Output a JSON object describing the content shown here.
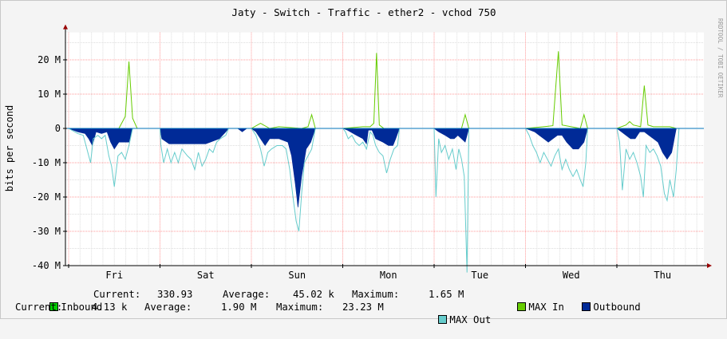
{
  "chart_data": {
    "type": "area",
    "title": "Jaty - Switch - Traffic - ether2 - vchod 750",
    "ylabel": "bits per second",
    "watermark": "RRDTOOL / TOBI OETIKER",
    "yticks": [
      {
        "value": 20000000,
        "label": "20 M"
      },
      {
        "value": 10000000,
        "label": "10 M"
      },
      {
        "value": 0,
        "label": "0"
      },
      {
        "value": -10000000,
        "label": "-10 M"
      },
      {
        "value": -20000000,
        "label": "-20 M"
      },
      {
        "value": -30000000,
        "label": "-30 M"
      },
      {
        "value": -40000000,
        "label": "-40 M"
      }
    ],
    "ylim": [
      -40000000,
      28000000
    ],
    "days": [
      "Fri",
      "Sat",
      "Sun",
      "Mon",
      "Tue",
      "Wed",
      "Thu"
    ],
    "grid": true,
    "colors": {
      "inbound": "#00cc00",
      "max_in": "#66cc00",
      "outbound": "#002a97",
      "max_out": "#66cccc",
      "grid_major": "#ff9999",
      "grid_minor": "#dddddd",
      "axis": "#000000",
      "arrow": "#990000",
      "zero_line": "#0073b9"
    },
    "series": [
      {
        "name": "MAX In",
        "color": "#66cc00",
        "points": [
          [
            0.0,
            0
          ],
          [
            0.55,
            0
          ],
          [
            0.62,
            3.5
          ],
          [
            0.66,
            19.5
          ],
          [
            0.7,
            3
          ],
          [
            0.75,
            0
          ],
          [
            2.0,
            0
          ],
          [
            2.1,
            1.5
          ],
          [
            2.2,
            0
          ],
          [
            2.3,
            0.5
          ],
          [
            2.55,
            0
          ],
          [
            2.62,
            0.5
          ],
          [
            2.66,
            4
          ],
          [
            2.7,
            0
          ],
          [
            3.0,
            0
          ],
          [
            3.22,
            0.5
          ],
          [
            3.3,
            0.5
          ],
          [
            3.34,
            1.5
          ],
          [
            3.37,
            22
          ],
          [
            3.4,
            1
          ],
          [
            3.45,
            0
          ],
          [
            4.0,
            0
          ],
          [
            4.3,
            0
          ],
          [
            4.34,
            4
          ],
          [
            4.38,
            0
          ],
          [
            5.0,
            0
          ],
          [
            5.2,
            0.5
          ],
          [
            5.3,
            0.8
          ],
          [
            5.36,
            22.5
          ],
          [
            5.4,
            1
          ],
          [
            5.6,
            0
          ],
          [
            5.64,
            4
          ],
          [
            5.68,
            0
          ],
          [
            6.0,
            0
          ],
          [
            6.1,
            1
          ],
          [
            6.14,
            2
          ],
          [
            6.18,
            1
          ],
          [
            6.26,
            0.5
          ],
          [
            6.3,
            12.5
          ],
          [
            6.34,
            1
          ],
          [
            6.4,
            0.5
          ],
          [
            6.58,
            0.5
          ],
          [
            6.65,
            0
          ]
        ]
      },
      {
        "name": "Outbound",
        "color": "#002a97",
        "points": [
          [
            0.0,
            0
          ],
          [
            0.1,
            -1
          ],
          [
            0.18,
            -1.5
          ],
          [
            0.22,
            -3
          ],
          [
            0.26,
            -5
          ],
          [
            0.3,
            -1
          ],
          [
            0.36,
            -1.5
          ],
          [
            0.42,
            -1
          ],
          [
            0.46,
            -4
          ],
          [
            0.5,
            -6
          ],
          [
            0.55,
            -4
          ],
          [
            0.62,
            -4
          ],
          [
            0.66,
            -4
          ],
          [
            0.7,
            0
          ],
          [
            1.0,
            0
          ],
          [
            1.02,
            -3
          ],
          [
            1.1,
            -4.5
          ],
          [
            1.2,
            -4.5
          ],
          [
            1.3,
            -4.5
          ],
          [
            1.4,
            -4.5
          ],
          [
            1.5,
            -4.5
          ],
          [
            1.55,
            -4
          ],
          [
            1.65,
            -3
          ],
          [
            1.72,
            -1
          ],
          [
            1.75,
            0
          ],
          [
            1.85,
            0
          ],
          [
            1.9,
            -1
          ],
          [
            1.95,
            0
          ],
          [
            2.0,
            0
          ],
          [
            2.05,
            -1
          ],
          [
            2.1,
            -3
          ],
          [
            2.15,
            -5
          ],
          [
            2.2,
            -3
          ],
          [
            2.3,
            -3
          ],
          [
            2.4,
            -4
          ],
          [
            2.44,
            -8
          ],
          [
            2.48,
            -16
          ],
          [
            2.51,
            -23
          ],
          [
            2.55,
            -14
          ],
          [
            2.6,
            -6
          ],
          [
            2.65,
            -4
          ],
          [
            2.7,
            0
          ],
          [
            3.0,
            0
          ],
          [
            3.05,
            -0.5
          ],
          [
            3.15,
            -2
          ],
          [
            3.22,
            -3
          ],
          [
            3.26,
            -4.5
          ],
          [
            3.28,
            -0.5
          ],
          [
            3.32,
            -0.5
          ],
          [
            3.36,
            -3
          ],
          [
            3.44,
            -4
          ],
          [
            3.5,
            -5
          ],
          [
            3.55,
            -5
          ],
          [
            3.58,
            -3
          ],
          [
            3.62,
            0
          ],
          [
            4.0,
            0
          ],
          [
            4.05,
            -1
          ],
          [
            4.12,
            -2
          ],
          [
            4.18,
            -3
          ],
          [
            4.22,
            -3
          ],
          [
            4.26,
            -2
          ],
          [
            4.3,
            -3
          ],
          [
            4.34,
            -4
          ],
          [
            4.38,
            0
          ],
          [
            5.0,
            0
          ],
          [
            5.05,
            -0.5
          ],
          [
            5.1,
            -1
          ],
          [
            5.15,
            -2
          ],
          [
            5.2,
            -3
          ],
          [
            5.25,
            -4
          ],
          [
            5.3,
            -3
          ],
          [
            5.35,
            -2
          ],
          [
            5.4,
            -2
          ],
          [
            5.45,
            -4
          ],
          [
            5.52,
            -6
          ],
          [
            5.58,
            -6
          ],
          [
            5.64,
            -4
          ],
          [
            5.68,
            0
          ],
          [
            6.0,
            0
          ],
          [
            6.05,
            -1
          ],
          [
            6.1,
            -2
          ],
          [
            6.15,
            -3
          ],
          [
            6.2,
            -3
          ],
          [
            6.25,
            -1
          ],
          [
            6.3,
            -1
          ],
          [
            6.35,
            -2
          ],
          [
            6.4,
            -3
          ],
          [
            6.45,
            -4
          ],
          [
            6.5,
            -7
          ],
          [
            6.55,
            -9
          ],
          [
            6.6,
            -7
          ],
          [
            6.65,
            0
          ]
        ]
      },
      {
        "name": "MAX Out",
        "color": "#66cccc",
        "points": [
          [
            0.0,
            0
          ],
          [
            0.1,
            -1.5
          ],
          [
            0.16,
            -2
          ],
          [
            0.2,
            -6
          ],
          [
            0.24,
            -10
          ],
          [
            0.27,
            -3
          ],
          [
            0.32,
            -2
          ],
          [
            0.36,
            -3
          ],
          [
            0.4,
            -2
          ],
          [
            0.44,
            -8
          ],
          [
            0.47,
            -11
          ],
          [
            0.5,
            -17
          ],
          [
            0.54,
            -8
          ],
          [
            0.58,
            -7
          ],
          [
            0.62,
            -9
          ],
          [
            0.66,
            -5
          ],
          [
            0.7,
            0
          ],
          [
            1.0,
            0
          ],
          [
            1.01,
            -5
          ],
          [
            1.04,
            -10
          ],
          [
            1.08,
            -6
          ],
          [
            1.12,
            -10
          ],
          [
            1.16,
            -7
          ],
          [
            1.2,
            -10
          ],
          [
            1.24,
            -6
          ],
          [
            1.3,
            -8
          ],
          [
            1.34,
            -9
          ],
          [
            1.38,
            -12
          ],
          [
            1.42,
            -7
          ],
          [
            1.46,
            -11
          ],
          [
            1.5,
            -9
          ],
          [
            1.54,
            -6
          ],
          [
            1.58,
            -7
          ],
          [
            1.62,
            -4
          ],
          [
            1.66,
            -3
          ],
          [
            1.72,
            -2
          ],
          [
            1.75,
            0
          ],
          [
            2.0,
            0
          ],
          [
            2.05,
            -2
          ],
          [
            2.1,
            -6
          ],
          [
            2.14,
            -11
          ],
          [
            2.18,
            -7
          ],
          [
            2.22,
            -6
          ],
          [
            2.28,
            -5
          ],
          [
            2.34,
            -5
          ],
          [
            2.38,
            -6
          ],
          [
            2.42,
            -12
          ],
          [
            2.46,
            -21
          ],
          [
            2.49,
            -27
          ],
          [
            2.52,
            -30
          ],
          [
            2.55,
            -19
          ],
          [
            2.58,
            -10
          ],
          [
            2.62,
            -8
          ],
          [
            2.66,
            -6
          ],
          [
            2.7,
            0
          ],
          [
            3.0,
            0
          ],
          [
            3.03,
            -1
          ],
          [
            3.06,
            -3
          ],
          [
            3.1,
            -2
          ],
          [
            3.14,
            -4
          ],
          [
            3.18,
            -5
          ],
          [
            3.22,
            -4
          ],
          [
            3.26,
            -6
          ],
          [
            3.3,
            -1
          ],
          [
            3.33,
            -2
          ],
          [
            3.36,
            -5
          ],
          [
            3.4,
            -7
          ],
          [
            3.44,
            -8
          ],
          [
            3.48,
            -13
          ],
          [
            3.52,
            -9
          ],
          [
            3.56,
            -6
          ],
          [
            3.6,
            -5
          ],
          [
            3.62,
            0
          ],
          [
            4.0,
            0
          ],
          [
            4.02,
            -20
          ],
          [
            4.05,
            -3
          ],
          [
            4.08,
            -7
          ],
          [
            4.12,
            -5
          ],
          [
            4.16,
            -9
          ],
          [
            4.2,
            -6
          ],
          [
            4.24,
            -12
          ],
          [
            4.27,
            -6
          ],
          [
            4.3,
            -9
          ],
          [
            4.33,
            -14
          ],
          [
            4.36,
            -42
          ],
          [
            4.38,
            0
          ],
          [
            5.0,
            0
          ],
          [
            5.04,
            -2
          ],
          [
            5.08,
            -5
          ],
          [
            5.12,
            -7
          ],
          [
            5.16,
            -10
          ],
          [
            5.2,
            -7
          ],
          [
            5.24,
            -9
          ],
          [
            5.28,
            -11
          ],
          [
            5.32,
            -8
          ],
          [
            5.36,
            -6
          ],
          [
            5.4,
            -12
          ],
          [
            5.44,
            -9
          ],
          [
            5.48,
            -12
          ],
          [
            5.52,
            -14
          ],
          [
            5.56,
            -12
          ],
          [
            5.6,
            -15
          ],
          [
            5.63,
            -17
          ],
          [
            5.66,
            -10
          ],
          [
            5.68,
            0
          ],
          [
            6.0,
            0
          ],
          [
            6.03,
            -4
          ],
          [
            6.06,
            -18
          ],
          [
            6.1,
            -6
          ],
          [
            6.14,
            -9
          ],
          [
            6.18,
            -7
          ],
          [
            6.22,
            -10
          ],
          [
            6.26,
            -14
          ],
          [
            6.29,
            -20
          ],
          [
            6.32,
            -5
          ],
          [
            6.36,
            -7
          ],
          [
            6.4,
            -6
          ],
          [
            6.44,
            -8
          ],
          [
            6.48,
            -11
          ],
          [
            6.52,
            -19
          ],
          [
            6.55,
            -21
          ],
          [
            6.58,
            -15
          ],
          [
            6.62,
            -20
          ],
          [
            6.65,
            -12
          ],
          [
            6.68,
            0
          ]
        ]
      }
    ]
  },
  "legend": {
    "row1": {
      "inbound_label": "Inbound",
      "current_label": "Current:",
      "current_value": "330.93",
      "average_label": "Average:",
      "average_value": "45.02 k",
      "maximum_label": "Maximum:",
      "maximum_value": "1.65 M",
      "max_in_label": "MAX In",
      "outbound_label": "Outbound"
    },
    "row2": {
      "current_label": "Current:",
      "current_value": "4.13 k",
      "average_label": "Average:",
      "average_value": "1.90 M",
      "maximum_label": "Maximum:",
      "maximum_value": "23.23 M",
      "max_out_label": "MAX Out"
    }
  }
}
